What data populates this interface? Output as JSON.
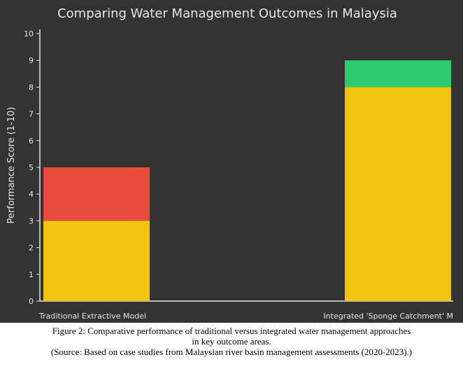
{
  "chart_data": {
    "type": "bar",
    "stacked": true,
    "title": "Comparing Water Management Outcomes in Malaysia",
    "ylabel": "Performance Score (1-10)",
    "xlabel": "",
    "ylim": [
      0,
      10
    ],
    "yticks": [
      0,
      1,
      2,
      3,
      4,
      5,
      6,
      7,
      8,
      9,
      10
    ],
    "categories": [
      "Traditional Extractive Model",
      "Integrated 'Sponge Catchment' M"
    ],
    "series": [
      {
        "values": [
          3,
          8
        ],
        "color": "#f1c40f"
      },
      {
        "values": [
          2,
          0
        ],
        "color": "#e74c3c"
      },
      {
        "values": [
          0,
          1
        ],
        "color": "#2ecc71"
      }
    ],
    "background": "#333333",
    "grid": false
  },
  "caption": {
    "line1": "Figure 2: Comparative performance of traditional versus integrated water management approaches",
    "line2": "in key outcome areas.",
    "line3": "(Source: Based on case studies from Malaysian river basin management assessments (2020-2023).)"
  }
}
